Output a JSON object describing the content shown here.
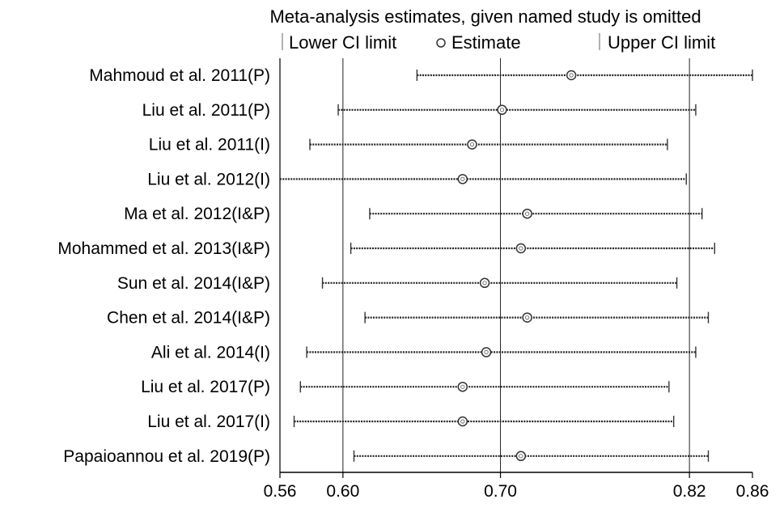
{
  "chart_data": {
    "type": "forest",
    "title": "Meta-analysis estimates, given named study is omitted",
    "legend": {
      "lower": "Lower CI limit",
      "estimate": "Estimate",
      "upper": "Upper CI limit"
    },
    "xlim": [
      0.56,
      0.86
    ],
    "xticks": [
      0.56,
      0.6,
      0.7,
      0.82,
      0.86
    ],
    "xtick_labels": [
      "0.56",
      "0.60",
      "0.70",
      "0.82",
      "0.86"
    ],
    "reference_lines": [
      0.6,
      0.7,
      0.82
    ],
    "studies": [
      {
        "label": "Mahmoud et al. 2011(P)",
        "lower": 0.647,
        "estimate": 0.745,
        "upper": 0.86
      },
      {
        "label": "Liu et al. 2011(P)",
        "lower": 0.597,
        "estimate": 0.701,
        "upper": 0.824
      },
      {
        "label": "Liu et al. 2011(I)",
        "lower": 0.579,
        "estimate": 0.682,
        "upper": 0.806
      },
      {
        "label": "Liu et al. 2012(I)",
        "lower": 0.56,
        "estimate": 0.676,
        "upper": 0.818
      },
      {
        "label": "Ma et al. 2012(I&P)",
        "lower": 0.617,
        "estimate": 0.717,
        "upper": 0.828
      },
      {
        "label": "Mohammed et al. 2013(I&P)",
        "lower": 0.605,
        "estimate": 0.713,
        "upper": 0.836
      },
      {
        "label": "Sun et al. 2014(I&P)",
        "lower": 0.587,
        "estimate": 0.69,
        "upper": 0.812
      },
      {
        "label": "Chen et al. 2014(I&P)",
        "lower": 0.614,
        "estimate": 0.717,
        "upper": 0.832
      },
      {
        "label": "Ali et al. 2014(I)",
        "lower": 0.577,
        "estimate": 0.691,
        "upper": 0.824
      },
      {
        "label": "Liu et al. 2017(P)",
        "lower": 0.573,
        "estimate": 0.676,
        "upper": 0.807
      },
      {
        "label": "Liu et al. 2017(I)",
        "lower": 0.569,
        "estimate": 0.676,
        "upper": 0.81
      },
      {
        "label": "Papaioannou et al. 2019(P)",
        "lower": 0.607,
        "estimate": 0.713,
        "upper": 0.832
      }
    ]
  }
}
